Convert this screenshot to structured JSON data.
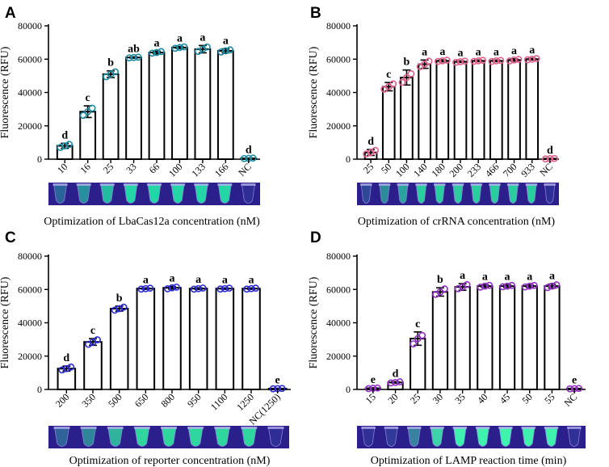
{
  "figure": {
    "ylabel": "Fluorescence (RFU)",
    "yticks": [
      0,
      20000,
      40000,
      60000,
      80000
    ],
    "ylim": [
      0,
      80000
    ]
  },
  "chart_data": [
    {
      "type": "bar",
      "panel": "A",
      "title": "Optimization of LbaCas12a concentration (nM)",
      "xlabel": "",
      "ylabel": "Fluorescence (RFU)",
      "ylim": [
        0,
        80000
      ],
      "categories": [
        "10",
        "16",
        "25",
        "33",
        "66",
        "100",
        "133",
        "166",
        "NC"
      ],
      "values": [
        8000,
        28500,
        51000,
        61000,
        64000,
        67000,
        66000,
        65000,
        500
      ],
      "errors": [
        1500,
        3500,
        2000,
        400,
        800,
        600,
        2200,
        1200,
        200
      ],
      "significance": [
        "d",
        "c",
        "b",
        "ab",
        "a",
        "a",
        "a",
        "a",
        "d"
      ],
      "point_color": "#1a8aa0",
      "tube_color": "#22e0a8",
      "tube_bright": [
        0.35,
        0.6,
        0.85,
        1,
        1,
        1,
        1,
        1,
        0.05
      ]
    },
    {
      "type": "bar",
      "panel": "B",
      "title": "Optimization of crRNA concentration (nM)",
      "xlabel": "",
      "ylabel": "Fluorescence (RFU)",
      "ylim": [
        0,
        80000
      ],
      "categories": [
        "25",
        "50",
        "100",
        "140",
        "180",
        "200",
        "233",
        "466",
        "700",
        "933",
        "NC"
      ],
      "values": [
        4000,
        43500,
        49000,
        57000,
        59000,
        58500,
        59000,
        59000,
        59500,
        60000,
        300
      ],
      "errors": [
        1800,
        2500,
        4500,
        2500,
        600,
        500,
        500,
        500,
        700,
        500,
        200
      ],
      "significance": [
        "d",
        "c",
        "b",
        "a",
        "a",
        "a",
        "a",
        "a",
        "a",
        "a",
        "d"
      ],
      "point_color": "#e0608a",
      "tube_color": "#2ad8a0",
      "tube_bright": [
        0.2,
        0.6,
        0.75,
        1,
        1,
        1,
        1,
        1,
        1,
        1,
        0.05
      ]
    },
    {
      "type": "bar",
      "panel": "C",
      "title": "Optimization of reporter concentration (nM)",
      "xlabel": "",
      "ylabel": "Fluorescence (RFU)",
      "ylim": [
        0,
        80000
      ],
      "categories": [
        "200",
        "350",
        "500",
        "650",
        "800",
        "950",
        "1100",
        "1250",
        "NC(1250)"
      ],
      "values": [
        12500,
        28500,
        48500,
        60500,
        61000,
        60500,
        60500,
        60500,
        500
      ],
      "errors": [
        1500,
        2000,
        1500,
        400,
        800,
        500,
        400,
        400,
        200
      ],
      "significance": [
        "d",
        "c",
        "b",
        "a",
        "a",
        "a",
        "a",
        "a",
        "e"
      ],
      "point_color": "#2a2ad0",
      "tube_color": "#30e0a0",
      "tube_bright": [
        0.35,
        0.55,
        0.8,
        1,
        1,
        1,
        1,
        1,
        0.05
      ]
    },
    {
      "type": "bar",
      "panel": "D",
      "title": "Optimization of LAMP reaction time (min)",
      "xlabel": "",
      "ylabel": "Fluorescence (RFU)",
      "ylim": [
        0,
        80000
      ],
      "categories": [
        "15",
        "20",
        "25",
        "30",
        "35",
        "40",
        "45",
        "50",
        "55",
        "NC"
      ],
      "values": [
        700,
        4200,
        30500,
        58500,
        61500,
        62000,
        62000,
        62000,
        62000,
        500
      ],
      "errors": [
        300,
        500,
        4000,
        2500,
        2000,
        800,
        800,
        800,
        1200,
        200
      ],
      "significance": [
        "e",
        "d",
        "c",
        "b",
        "a",
        "a",
        "a",
        "a",
        "a",
        "e"
      ],
      "point_color": "#9030c0",
      "tube_color": "#40ffb0",
      "tube_bright": [
        0.05,
        0.1,
        0.45,
        0.85,
        1,
        1,
        1,
        1,
        1,
        0.05
      ]
    }
  ]
}
